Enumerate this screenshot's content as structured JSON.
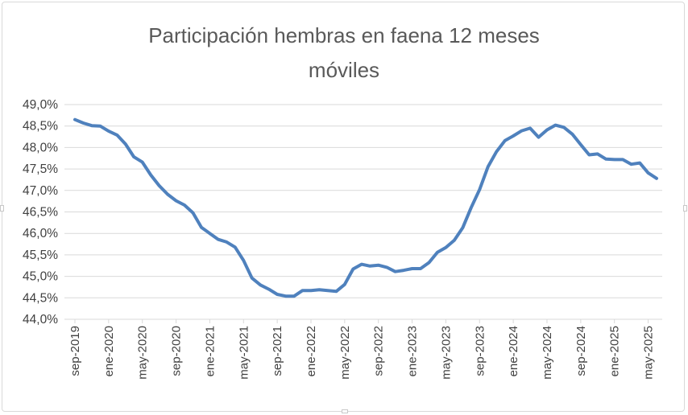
{
  "chart_data": {
    "type": "line",
    "title_lines": [
      "Participación hembras en faena 12 meses",
      "móviles"
    ],
    "ylim": [
      44.0,
      49.0
    ],
    "yticks": [
      "44,0%",
      "44,5%",
      "45,0%",
      "45,5%",
      "46,0%",
      "46,5%",
      "47,0%",
      "47,5%",
      "48,0%",
      "48,5%",
      "49,0%"
    ],
    "xtick_labels": [
      "sep-2019",
      "ene-2020",
      "may-2020",
      "sep-2020",
      "ene-2021",
      "may-2021",
      "sep-2021",
      "ene-2022",
      "may-2022",
      "sep-2022",
      "ene-2023",
      "may-2023",
      "sep-2023",
      "ene-2024",
      "may-2024",
      "sep-2024",
      "ene-2025",
      "may-2025"
    ],
    "grid": true,
    "legend": "none",
    "line_color": "#4f81bd",
    "series": [
      {
        "values": [
          48.65,
          48.57,
          48.51,
          48.5,
          48.38,
          48.29,
          48.08,
          47.78,
          47.66,
          47.36,
          47.11,
          46.91,
          46.76,
          46.66,
          46.48,
          46.14,
          46.0,
          45.86,
          45.8,
          45.68,
          45.37,
          44.96,
          44.8,
          44.7,
          44.58,
          44.54,
          44.54,
          44.67,
          44.67,
          44.69,
          44.67,
          44.65,
          44.81,
          45.17,
          45.28,
          45.24,
          45.26,
          45.21,
          45.11,
          45.14,
          45.18,
          45.18,
          45.32,
          45.56,
          45.67,
          45.84,
          46.13,
          46.6,
          47.02,
          47.55,
          47.9,
          48.16,
          48.27,
          48.39,
          48.45,
          48.24,
          48.41,
          48.52,
          48.47,
          48.31,
          48.07,
          47.83,
          47.85,
          47.73,
          47.72,
          47.72,
          47.61,
          47.64,
          47.41,
          47.28
        ]
      }
    ]
  }
}
